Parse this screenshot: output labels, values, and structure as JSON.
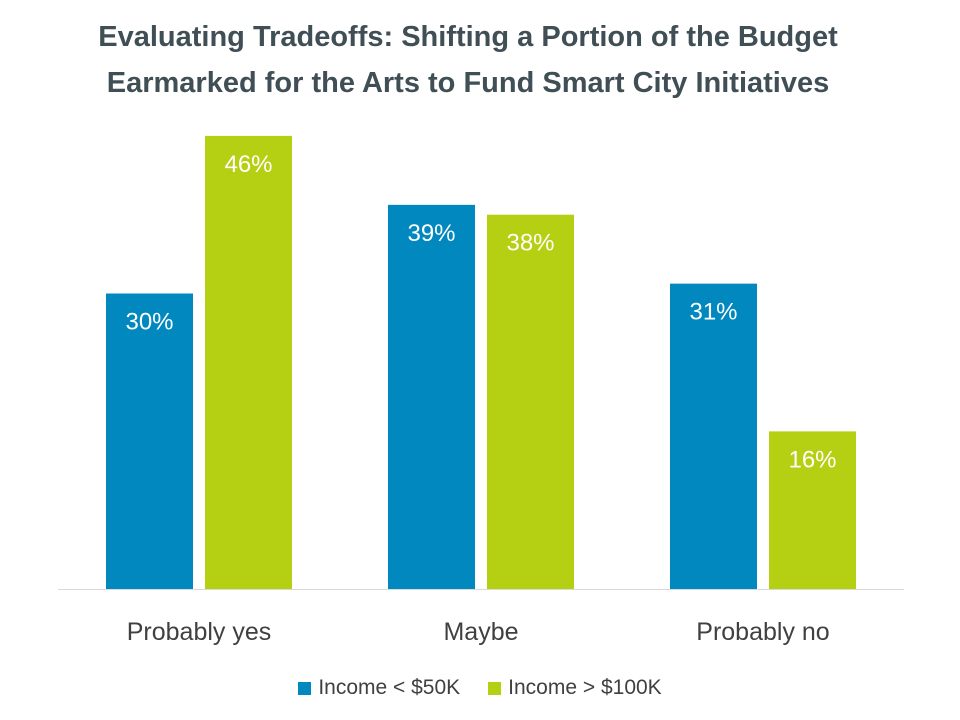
{
  "title_line1": "Evaluating Tradeoffs: Shifting a Portion of the Budget",
  "title_line2": "Earmarked for the Arts to Fund Smart City Initiatives",
  "colors": {
    "series1": "#0088bf",
    "series2": "#b5cf13",
    "axis": "#d9d9d9",
    "category_text": "#404040",
    "bar_label_text": "#ffffff"
  },
  "chart_data": {
    "type": "bar",
    "title": "Evaluating Tradeoffs: Shifting a Portion of the Budget Earmarked for the Arts to Fund Smart City Initiatives",
    "categories": [
      "Probably yes",
      "Maybe",
      "Probably no"
    ],
    "series": [
      {
        "name": "Income < $50K",
        "values": [
          30,
          39,
          31
        ],
        "labels": [
          "30%",
          "39%",
          "31%"
        ]
      },
      {
        "name": "Income > $100K",
        "values": [
          46,
          38,
          16
        ],
        "labels": [
          "46%",
          "38%",
          "16%"
        ]
      }
    ],
    "xlabel": "",
    "ylabel": "",
    "ylim": [
      0,
      50
    ],
    "grid": false,
    "legend_position": "bottom"
  }
}
